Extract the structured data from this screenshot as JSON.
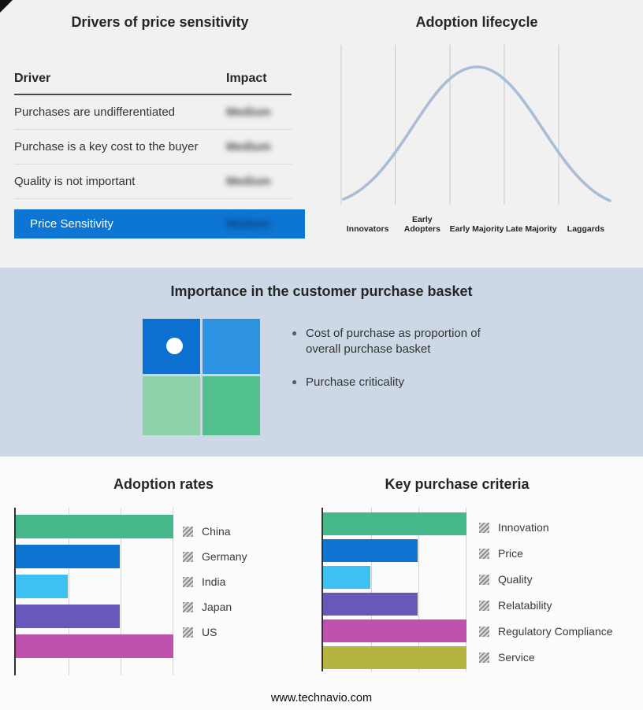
{
  "accent_colors": {
    "section_top_bg": "#f1f1f1",
    "section_middle_bg": "#ccd8e5",
    "primary_blue": "#0d76d4",
    "curve_color": "#a9bdd6"
  },
  "top_left": {
    "title": "Drivers of price sensitivity",
    "table": {
      "col_driver": "Driver",
      "col_impact": "Impact",
      "rows": [
        {
          "driver": "Purchases are undifferentiated",
          "impact": "Medium"
        },
        {
          "driver": "Purchase is a key cost to the buyer",
          "impact": "Medium"
        },
        {
          "driver": "Quality is not important",
          "impact": "Medium"
        }
      ],
      "summary": {
        "label": "Price Sensitivity",
        "impact": "Medium"
      }
    }
  },
  "top_right": {
    "title": "Adoption lifecycle",
    "categories": [
      "Innovators",
      "Early Adopters",
      "Early Majority",
      "Late Majority",
      "Laggards"
    ]
  },
  "middle": {
    "title": "Importance in the customer purchase basket",
    "bullets": [
      "Cost of purchase as proportion of overall purchase basket",
      "Purchase criticality"
    ],
    "quadrant_colors": [
      "#0b70cf",
      "#2e93e2",
      "#8ed2ab",
      "#52bf8e"
    ]
  },
  "chart_data": [
    {
      "type": "bar",
      "title": "Adoption rates",
      "orientation": "horizontal",
      "categories": [
        "China",
        "Germany",
        "India",
        "Japan",
        "US"
      ],
      "values": [
        100,
        66,
        33,
        66,
        100
      ],
      "colors": [
        "#45b789",
        "#0d74d2",
        "#3dc1f3",
        "#6659bb",
        "#c050ae"
      ],
      "xlim": [
        0,
        100
      ],
      "gridlines_pct": [
        33.3,
        66.6,
        100
      ],
      "legend_position": "right"
    },
    {
      "type": "bar",
      "title": "Key purchase criteria",
      "orientation": "horizontal",
      "categories": [
        "Innovation",
        "Price",
        "Quality",
        "Relatability",
        "Regulatory Compliance",
        "Service"
      ],
      "values": [
        100,
        66,
        33,
        66,
        100,
        100
      ],
      "colors": [
        "#45b789",
        "#0d74d2",
        "#3dc1f3",
        "#6659bb",
        "#c050ae",
        "#b4b53e"
      ],
      "xlim": [
        0,
        100
      ],
      "gridlines_pct": [
        33.3,
        66.6,
        100
      ],
      "legend_position": "right"
    },
    {
      "type": "line",
      "title": "Adoption lifecycle",
      "shape": "bell-curve",
      "categories": [
        "Innovators",
        "Early Adopters",
        "Early Majority",
        "Late Majority",
        "Laggards"
      ],
      "peak_category": "Early Majority"
    }
  ],
  "footer": {
    "url": "www.technavio.com"
  }
}
